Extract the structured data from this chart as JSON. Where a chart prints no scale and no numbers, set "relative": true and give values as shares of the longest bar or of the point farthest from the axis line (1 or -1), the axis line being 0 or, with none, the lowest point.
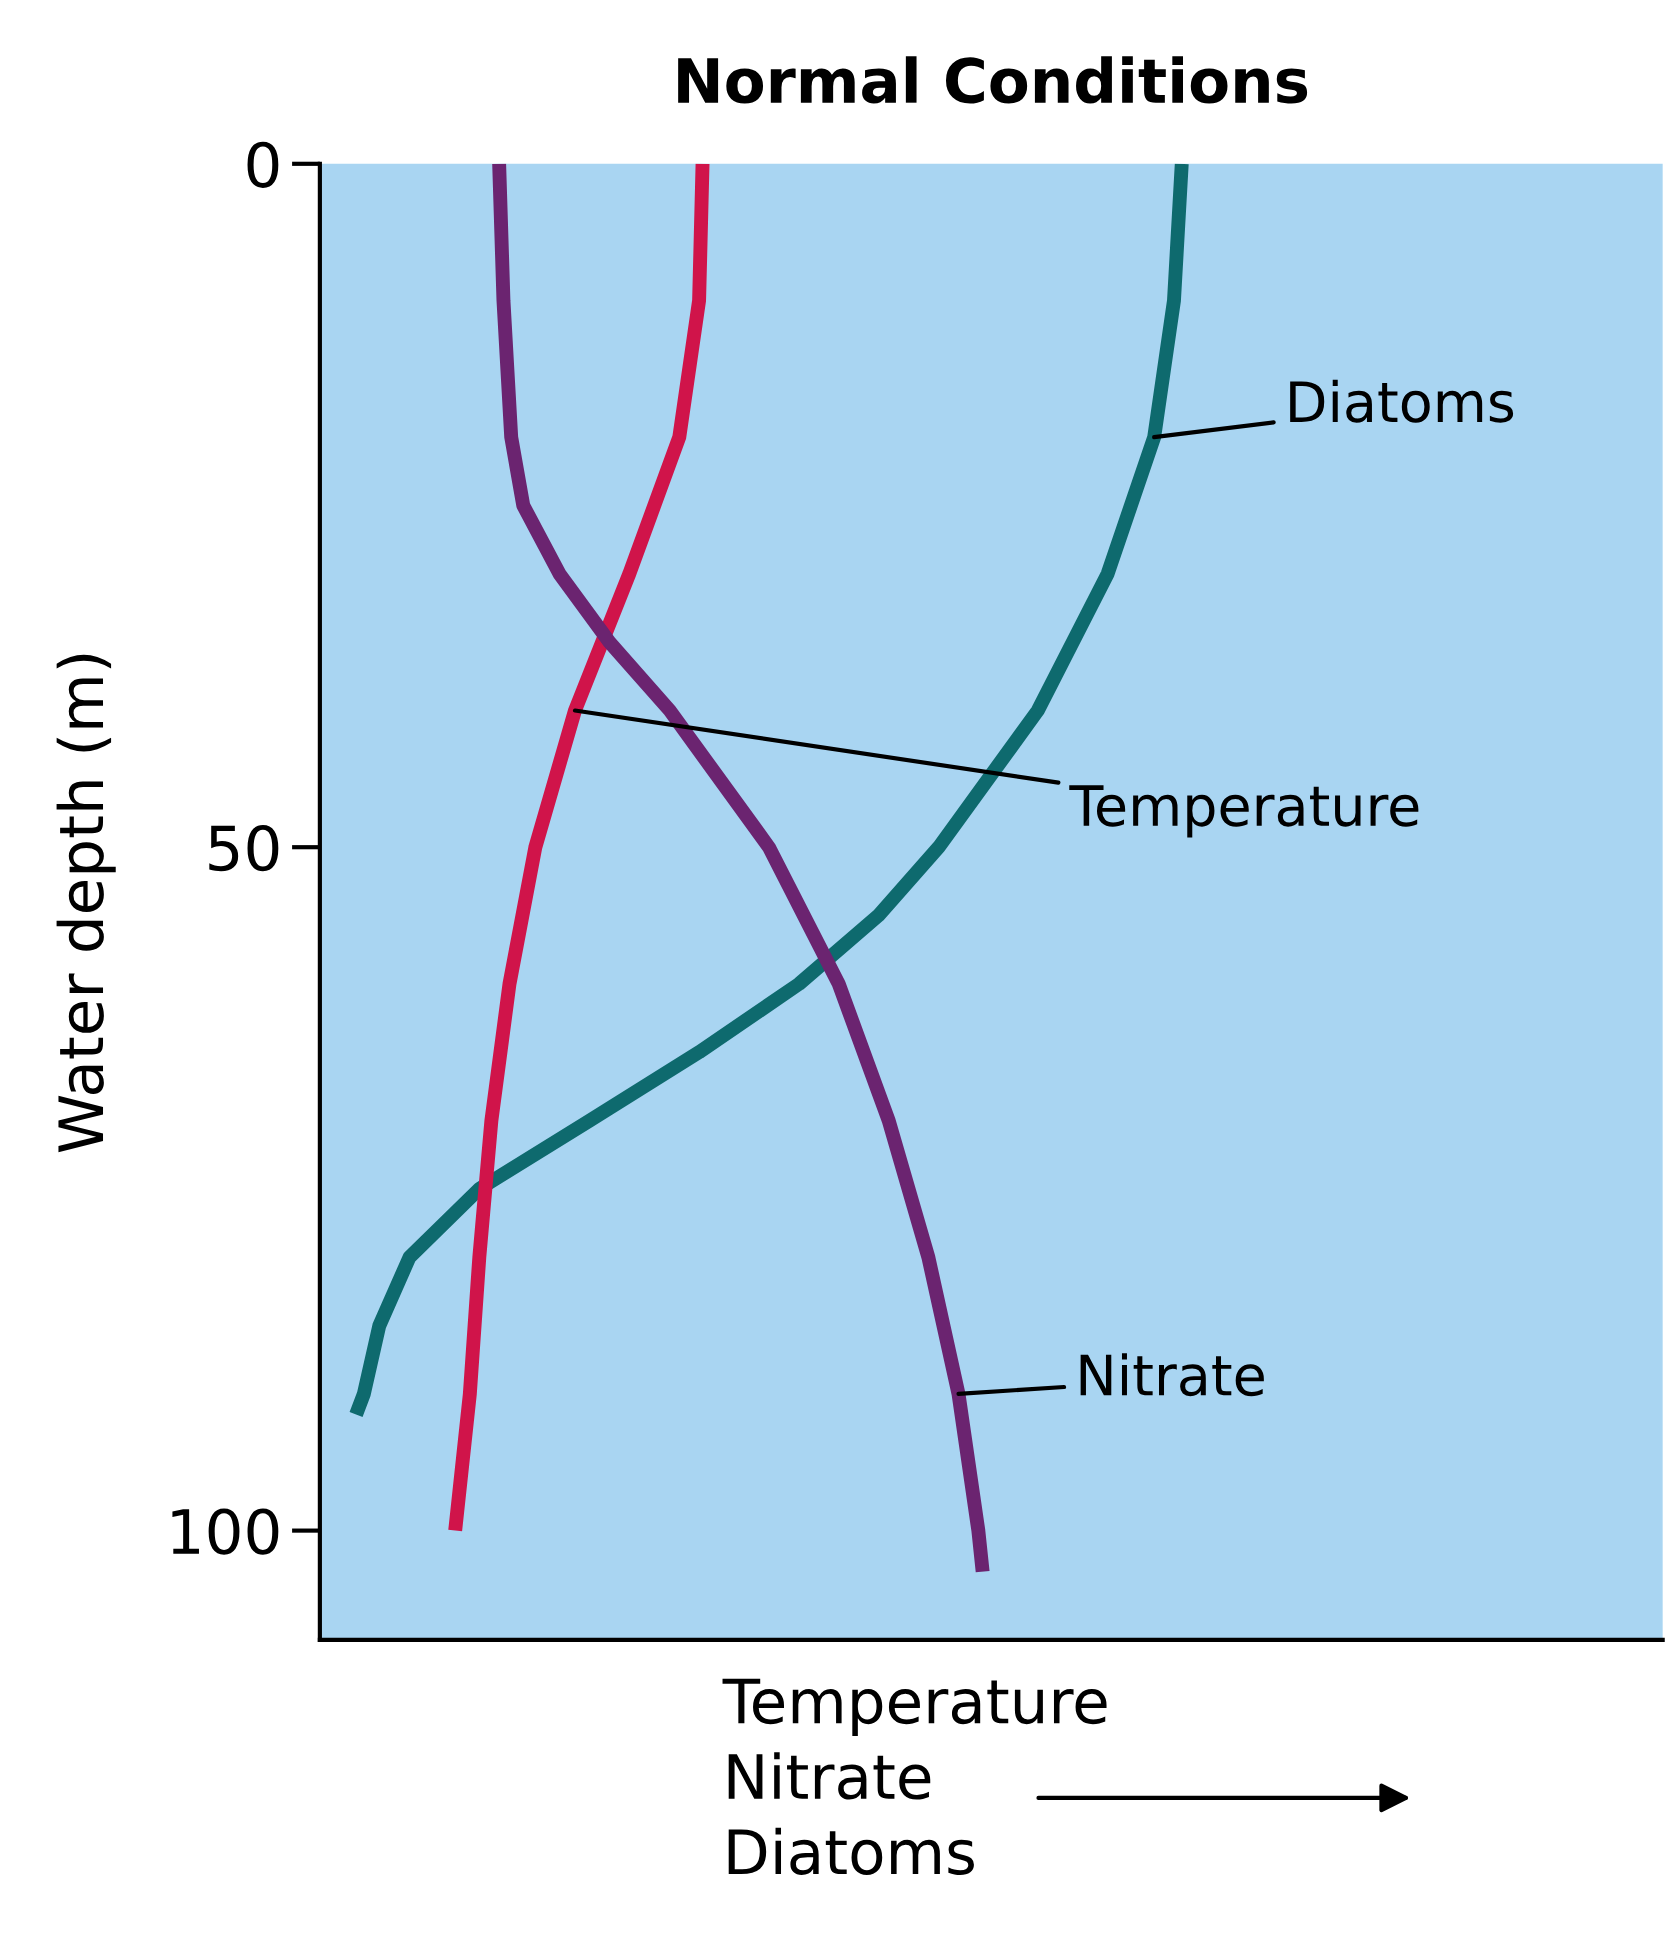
{
  "chart_data": {
    "type": "line",
    "title": "Normal Conditions",
    "ylabel": "Water depth (m)",
    "xlabel": "Temperature\nNitrate\nDiatoms",
    "orientation": "horizontal",
    "relative": true,
    "ylim": [
      108,
      0
    ],
    "yticks": [
      0,
      50,
      100
    ],
    "grid": false,
    "marker": "none",
    "line_style": "solid",
    "series": [
      {
        "name": "Diatoms",
        "color": "#0e6a6e",
        "x": [
          0,
          10,
          20,
          30,
          40,
          50,
          55,
          60,
          65,
          70,
          75,
          80,
          85,
          90,
          91.5
        ],
        "values": [
          1,
          0.991,
          0.968,
          0.914,
          0.833,
          0.718,
          0.648,
          0.556,
          0.44,
          0.313,
          0.185,
          0.104,
          0.069,
          0.051,
          0.042
        ]
      },
      {
        "name": "Temperature",
        "color": "#d0144a",
        "x": [
          0,
          10,
          20,
          30,
          40,
          50,
          60,
          70,
          80,
          90,
          100
        ],
        "values": [
          0.444,
          0.44,
          0.417,
          0.359,
          0.296,
          0.25,
          0.22,
          0.199,
          0.185,
          0.174,
          0.157
        ]
      },
      {
        "name": "Nitrate",
        "color": "#6b2470",
        "x": [
          0,
          10,
          20,
          25,
          30,
          35,
          40,
          50,
          60,
          70,
          80,
          90,
          100,
          103
        ],
        "values": [
          0.208,
          0.213,
          0.222,
          0.236,
          0.278,
          0.336,
          0.406,
          0.521,
          0.602,
          0.66,
          0.706,
          0.741,
          0.764,
          0.769
        ]
      }
    ]
  }
}
